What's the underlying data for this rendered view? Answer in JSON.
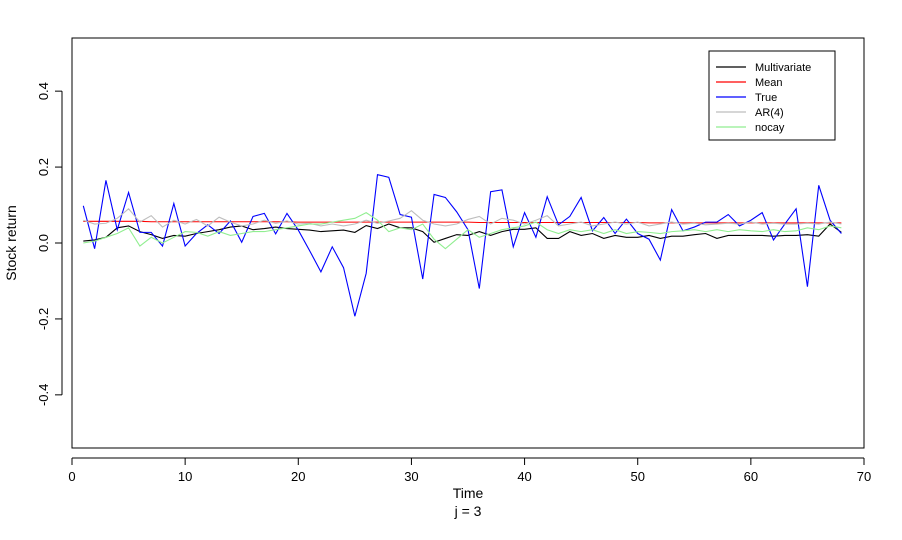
{
  "chart_data": {
    "type": "line",
    "title": "",
    "xlabel": "Time",
    "sublabel": "j = 3",
    "ylabel": "Stock return",
    "xlim": [
      0,
      70
    ],
    "ylim": [
      -0.54,
      0.54
    ],
    "x_ticks": [
      0,
      10,
      20,
      30,
      40,
      50,
      60,
      70
    ],
    "y_ticks": [
      -0.4,
      -0.2,
      0.0,
      0.2,
      0.4
    ],
    "x_tick_labels": [
      "0",
      "10",
      "20",
      "30",
      "40",
      "50",
      "60",
      "70"
    ],
    "y_tick_labels": [
      "-0.4",
      "-0.2",
      "0.0",
      "0.2",
      "0.4"
    ],
    "grid": false,
    "legend_position": "top-right",
    "x": [
      1,
      2,
      3,
      4,
      5,
      6,
      7,
      8,
      9,
      10,
      11,
      12,
      13,
      14,
      15,
      16,
      17,
      18,
      19,
      20,
      21,
      22,
      23,
      24,
      25,
      26,
      27,
      28,
      29,
      30,
      31,
      32,
      33,
      34,
      35,
      36,
      37,
      38,
      39,
      40,
      41,
      42,
      43,
      44,
      45,
      46,
      47,
      48,
      49,
      50,
      51,
      52,
      53,
      54,
      55,
      56,
      57,
      58,
      59,
      60,
      61,
      62,
      63,
      64,
      65,
      66,
      67,
      68
    ],
    "series": [
      {
        "name": "Multivariate",
        "color": "#000000",
        "values": [
          0.005,
          0.008,
          0.015,
          0.04,
          0.045,
          0.03,
          0.022,
          0.012,
          0.02,
          0.018,
          0.025,
          0.03,
          0.035,
          0.042,
          0.045,
          0.035,
          0.038,
          0.042,
          0.038,
          0.036,
          0.034,
          0.03,
          0.032,
          0.034,
          0.028,
          0.046,
          0.038,
          0.05,
          0.04,
          0.04,
          0.03,
          0.002,
          0.012,
          0.022,
          0.02,
          0.03,
          0.02,
          0.03,
          0.036,
          0.036,
          0.04,
          0.012,
          0.012,
          0.03,
          0.02,
          0.025,
          0.012,
          0.02,
          0.015,
          0.015,
          0.02,
          0.012,
          0.018,
          0.018,
          0.022,
          0.025,
          0.012,
          0.02,
          0.02,
          0.02,
          0.02,
          0.018,
          0.02,
          0.02,
          0.022,
          0.018,
          0.05,
          0.028
        ]
      },
      {
        "name": "Mean",
        "color": "#ff0000",
        "values": [
          0.057,
          0.057,
          0.057,
          0.057,
          0.057,
          0.057,
          0.056,
          0.056,
          0.056,
          0.056,
          0.056,
          0.056,
          0.056,
          0.056,
          0.056,
          0.056,
          0.056,
          0.056,
          0.056,
          0.055,
          0.055,
          0.055,
          0.055,
          0.055,
          0.055,
          0.055,
          0.055,
          0.055,
          0.055,
          0.055,
          0.055,
          0.055,
          0.055,
          0.055,
          0.055,
          0.054,
          0.054,
          0.054,
          0.054,
          0.054,
          0.054,
          0.054,
          0.054,
          0.054,
          0.054,
          0.054,
          0.054,
          0.054,
          0.054,
          0.054,
          0.053,
          0.053,
          0.053,
          0.053,
          0.053,
          0.053,
          0.053,
          0.053,
          0.053,
          0.053,
          0.053,
          0.053,
          0.053,
          0.053,
          0.053,
          0.053,
          0.053,
          0.053
        ]
      },
      {
        "name": "True",
        "color": "#0000ff",
        "values": [
          0.098,
          -0.015,
          0.165,
          0.035,
          0.133,
          0.028,
          0.028,
          -0.008,
          0.104,
          -0.008,
          0.025,
          0.048,
          0.025,
          0.058,
          0.002,
          0.07,
          0.078,
          0.024,
          0.078,
          0.034,
          -0.02,
          -0.076,
          -0.01,
          -0.065,
          -0.193,
          -0.08,
          0.18,
          0.173,
          0.075,
          0.068,
          -0.095,
          0.128,
          0.12,
          0.082,
          0.035,
          -0.12,
          0.135,
          0.14,
          -0.01,
          0.08,
          0.015,
          0.122,
          0.048,
          0.07,
          0.12,
          0.032,
          0.067,
          0.025,
          0.063,
          0.025,
          0.01,
          -0.045,
          0.088,
          0.032,
          0.042,
          0.055,
          0.055,
          0.075,
          0.045,
          0.06,
          0.08,
          0.008,
          0.05,
          0.09,
          -0.115,
          0.152,
          0.06,
          0.025
        ]
      },
      {
        "name": "AR(4)",
        "color": "#bebebe",
        "values": [
          0.06,
          0.05,
          0.052,
          0.065,
          0.09,
          0.055,
          0.072,
          0.042,
          0.06,
          0.05,
          0.062,
          0.045,
          0.068,
          0.055,
          0.045,
          0.05,
          0.06,
          0.052,
          0.058,
          0.05,
          0.052,
          0.045,
          0.05,
          0.045,
          0.05,
          0.06,
          0.052,
          0.058,
          0.065,
          0.085,
          0.06,
          0.05,
          0.045,
          0.05,
          0.062,
          0.07,
          0.05,
          0.065,
          0.06,
          0.05,
          0.06,
          0.072,
          0.045,
          0.05,
          0.055,
          0.045,
          0.05,
          0.055,
          0.05,
          0.055,
          0.045,
          0.05,
          0.055,
          0.05,
          0.052,
          0.048,
          0.05,
          0.052,
          0.05,
          0.055,
          0.05,
          0.052,
          0.05,
          0.05,
          0.052,
          0.05,
          0.055,
          0.05
        ]
      },
      {
        "name": "nocay",
        "color": "#90ee90",
        "values": [
          0.0,
          0.005,
          0.015,
          0.025,
          0.04,
          -0.008,
          0.015,
          0.0,
          0.015,
          0.03,
          0.028,
          0.018,
          0.03,
          0.02,
          0.025,
          0.03,
          0.03,
          0.035,
          0.04,
          0.045,
          0.05,
          0.05,
          0.055,
          0.06,
          0.065,
          0.08,
          0.06,
          0.03,
          0.04,
          0.035,
          0.05,
          0.01,
          -0.015,
          0.01,
          0.035,
          0.015,
          0.025,
          0.035,
          0.04,
          0.045,
          0.055,
          0.035,
          0.025,
          0.035,
          0.03,
          0.035,
          0.025,
          0.035,
          0.025,
          0.03,
          0.028,
          0.025,
          0.03,
          0.032,
          0.035,
          0.03,
          0.035,
          0.03,
          0.035,
          0.032,
          0.03,
          0.035,
          0.03,
          0.032,
          0.04,
          0.035,
          0.045,
          0.04
        ]
      }
    ]
  }
}
